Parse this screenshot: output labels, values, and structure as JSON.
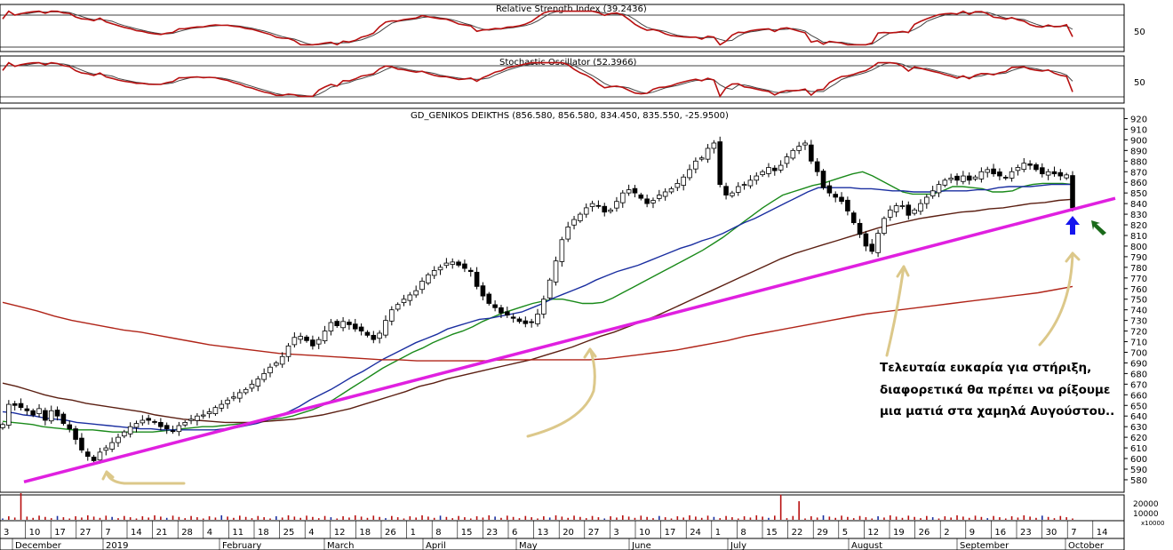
{
  "chart_data": {
    "type": "candlestick",
    "title": "GD_GENIKOS DEIKTHS (856.580, 856.580, 834.450, 835.550, -25.9500)",
    "panels": {
      "rsi": {
        "title": "Relative Strength Index (39.2436)",
        "level_label": "50"
      },
      "stochastic": {
        "title": "Stochastic Oscillator (52.3966)",
        "level_label": "50"
      },
      "volume": {
        "tick_labels": [
          "20000",
          "10000"
        ],
        "multiplier_label": "x10000"
      }
    },
    "y_axis": {
      "range": [
        570,
        925
      ],
      "tick_labels": [
        "920",
        "910",
        "900",
        "890",
        "880",
        "870",
        "860",
        "850",
        "840",
        "830",
        "820",
        "810",
        "800",
        "790",
        "780",
        "770",
        "760",
        "750",
        "740",
        "730",
        "720",
        "710",
        "700",
        "690",
        "680",
        "670",
        "660",
        "650",
        "640",
        "630",
        "620",
        "610",
        "600",
        "590",
        "580"
      ]
    },
    "x_axis": {
      "day_ticks": [
        "3",
        "10",
        "17",
        "27",
        "7",
        "14",
        "21",
        "28",
        "4",
        "11",
        "18",
        "25",
        "4",
        "12",
        "18",
        "26",
        "1",
        "8",
        "15",
        "23",
        "6",
        "13",
        "20",
        "27",
        "3",
        "10",
        "17",
        "24",
        "1",
        "8",
        "15",
        "22",
        "29",
        "5",
        "12",
        "19",
        "26",
        "2",
        "9",
        "16",
        "23",
        "30",
        "7",
        "14"
      ],
      "month_labels": [
        "December",
        "2019",
        "February",
        "March",
        "April",
        "May",
        "June",
        "July",
        "August",
        "September",
        "October"
      ]
    },
    "closes": [
      632,
      651,
      650,
      648,
      645,
      641,
      647,
      636,
      645,
      640,
      633,
      628,
      618,
      608,
      602,
      598,
      606,
      610,
      615,
      620,
      625,
      630,
      633,
      636,
      636,
      634,
      630,
      628,
      626,
      631,
      634,
      637,
      640,
      641,
      644,
      648,
      651,
      655,
      658,
      662,
      665,
      670,
      675,
      680,
      686,
      690,
      696,
      706,
      714,
      715,
      711,
      706,
      712,
      720,
      728,
      725,
      729,
      726,
      722,
      720,
      716,
      712,
      718,
      730,
      740,
      745,
      750,
      754,
      758,
      767,
      773,
      777,
      780,
      784,
      785,
      782,
      779,
      776,
      762,
      753,
      746,
      742,
      737,
      735,
      732,
      729,
      727,
      728,
      736,
      750,
      768,
      786,
      806,
      818,
      825,
      830,
      836,
      840,
      838,
      832,
      834,
      842,
      850,
      853,
      850,
      845,
      840,
      843,
      848,
      851,
      854,
      859,
      865,
      872,
      880,
      883,
      892,
      897,
      858,
      848,
      850,
      856,
      858,
      862,
      866,
      870,
      874,
      871,
      876,
      884,
      890,
      894,
      897,
      880,
      870,
      855,
      850,
      846,
      842,
      833,
      822,
      811,
      800,
      795,
      812,
      826,
      834,
      838,
      838,
      829,
      834,
      840,
      846,
      852,
      858,
      862,
      864,
      862,
      866,
      862,
      865,
      870,
      872,
      868,
      866,
      864,
      870,
      874,
      878,
      876,
      872,
      868,
      870,
      868,
      866,
      867,
      836
    ],
    "series": [
      {
        "name": "",
        "color": "#1a8a1a",
        "values": [
          635,
          634,
          633,
          632,
          630,
          629,
          628,
          627,
          627,
          627,
          626,
          625,
          625,
          625,
          625,
          625,
          626,
          627,
          628,
          629,
          630,
          630,
          631,
          632,
          633,
          634,
          636,
          637,
          638,
          640,
          643,
          646,
          650,
          655,
          661,
          667,
          673,
          679,
          685,
          690,
          695,
          700,
          704,
          709,
          713,
          717,
          720,
          724,
          729,
          733,
          737,
          740,
          743,
          746,
          748,
          750,
          750,
          748,
          746,
          746,
          747,
          751,
          756,
          761,
          766,
          771,
          776,
          781,
          786,
          791,
          796,
          802,
          808,
          815,
          822,
          829,
          836,
          842,
          848,
          851,
          854,
          857,
          859,
          862,
          865,
          868,
          870,
          866,
          861,
          856,
          851,
          849,
          849,
          849,
          852,
          856,
          856,
          855,
          854,
          851,
          851,
          852,
          856,
          858,
          859,
          859,
          859,
          858
        ]
      },
      {
        "name": "",
        "color": "#1a2ea0",
        "values": [
          644,
          643,
          641,
          640,
          638,
          637,
          636,
          634,
          633,
          632,
          631,
          630,
          629,
          628,
          628,
          627,
          627,
          627,
          627,
          627,
          627,
          628,
          629,
          631,
          633,
          636,
          640,
          644,
          649,
          655,
          660,
          665,
          671,
          677,
          682,
          688,
          694,
          699,
          704,
          709,
          713,
          717,
          722,
          725,
          728,
          731,
          732,
          734,
          736,
          738,
          742,
          746,
          751,
          755,
          759,
          763,
          768,
          772,
          776,
          779,
          782,
          786,
          790,
          794,
          798,
          801,
          805,
          808,
          812,
          817,
          822,
          826,
          831,
          836,
          841,
          846,
          851,
          855,
          855,
          855,
          855,
          854,
          854,
          853,
          852,
          852,
          851,
          851,
          851,
          852,
          852,
          852,
          853,
          853,
          855,
          856,
          856,
          856,
          857,
          858,
          858,
          858
        ]
      },
      {
        "name": "",
        "color": "#5b1f12",
        "values": [
          671,
          668,
          664,
          660,
          657,
          655,
          652,
          650,
          648,
          646,
          644,
          641,
          639,
          637,
          636,
          635,
          634,
          634,
          634,
          635,
          636,
          637,
          639,
          641,
          644,
          647,
          651,
          655,
          659,
          663,
          668,
          671,
          675,
          678,
          681,
          684,
          687,
          690,
          693,
          697,
          701,
          705,
          710,
          715,
          719,
          724,
          729,
          734,
          740,
          746,
          752,
          758,
          764,
          770,
          776,
          782,
          788,
          793,
          797,
          801,
          805,
          809,
          813,
          817,
          820,
          823,
          826,
          828,
          830,
          832,
          833,
          835,
          836,
          838,
          840,
          841,
          843,
          844
        ]
      },
      {
        "name": "",
        "color": "#b02418",
        "values": [
          747,
          743,
          739,
          734,
          730,
          727,
          724,
          721,
          719,
          716,
          713,
          710,
          707,
          705,
          703,
          701,
          699,
          698,
          697,
          696,
          695,
          694,
          693,
          693,
          692,
          692,
          692,
          692,
          692,
          693,
          693,
          693,
          693,
          693,
          693,
          694,
          696,
          698,
          700,
          702,
          705,
          708,
          711,
          715,
          718,
          721,
          724,
          727,
          730,
          733,
          736,
          738,
          740,
          742,
          744,
          746,
          748,
          750,
          752,
          754,
          756,
          759,
          762
        ]
      }
    ],
    "trendline": {
      "color": "#e020e0",
      "points": [
        [
          27,
          578
        ],
        [
          1255,
          845
        ]
      ]
    }
  },
  "annotation": {
    "lines": [
      "Τελευταία ευκαρία για στήριξη,",
      "διαφορετικά θα πρέπει να ρίξουμε",
      "μια ματιά στα χαμηλά Αυγούστου.."
    ]
  },
  "colors": {
    "arrow_blue": "#1515ee",
    "arrow_green": "#1a6a1a",
    "hand_arrow": "#dcc88a"
  }
}
